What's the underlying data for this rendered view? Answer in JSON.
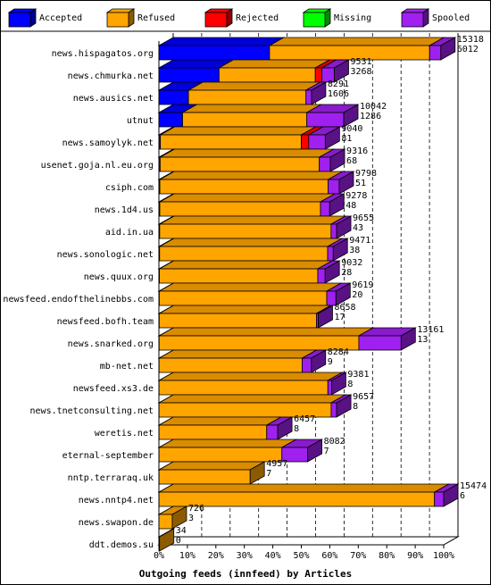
{
  "chart_data": {
    "type": "bar",
    "stacked": true,
    "orientation": "horizontal",
    "style": "3d",
    "xlabel": "Outgoing feeds (innfeed) by Articles",
    "x_ticks": [
      "0%",
      "10%",
      "20%",
      "30%",
      "40%",
      "50%",
      "60%",
      "70%",
      "80%",
      "90%",
      "100%"
    ],
    "x_max": 15474,
    "legend": [
      {
        "name": "Accepted",
        "color": "#0000ff"
      },
      {
        "name": "Refused",
        "color": "#ffa500"
      },
      {
        "name": "Rejected",
        "color": "#ff0000"
      },
      {
        "name": "Missing",
        "color": "#00ff00"
      },
      {
        "name": "Spooled",
        "color": "#a020f0"
      }
    ],
    "legend_position": "top",
    "rows": [
      {
        "label": "news.hispagatos.org",
        "total": "15318",
        "accepted_label": "6012",
        "values": [
          6012,
          8696,
          0,
          0,
          610
        ]
      },
      {
        "label": "news.chmurka.net",
        "total": "9531",
        "accepted_label": "3268",
        "values": [
          3268,
          5230,
          360,
          0,
          673
        ]
      },
      {
        "label": "news.ausics.net",
        "total": "8291",
        "accepted_label": "1606",
        "values": [
          1606,
          6385,
          0,
          0,
          300
        ]
      },
      {
        "label": "utnut",
        "total": "10042",
        "accepted_label": "1286",
        "values": [
          1286,
          6750,
          0,
          0,
          2006
        ]
      },
      {
        "label": "news.samoylyk.net",
        "total": "9040",
        "accepted_label": "81",
        "values": [
          81,
          7659,
          400,
          0,
          900
        ]
      },
      {
        "label": "usenet.goja.nl.eu.org",
        "total": "9316",
        "accepted_label": "68",
        "values": [
          68,
          8648,
          0,
          0,
          600
        ]
      },
      {
        "label": "csiph.com",
        "total": "9798",
        "accepted_label": "51",
        "values": [
          51,
          9147,
          0,
          0,
          600
        ]
      },
      {
        "label": "news.1d4.us",
        "total": "9278",
        "accepted_label": "48",
        "values": [
          48,
          8730,
          0,
          0,
          500
        ]
      },
      {
        "label": "aid.in.ua",
        "total": "9655",
        "accepted_label": "43",
        "values": [
          43,
          9312,
          0,
          0,
          300
        ]
      },
      {
        "label": "news.sonologic.net",
        "total": "9471",
        "accepted_label": "38",
        "values": [
          38,
          9133,
          0,
          0,
          300
        ]
      },
      {
        "label": "news.quux.org",
        "total": "9032",
        "accepted_label": "28",
        "values": [
          28,
          8604,
          0,
          0,
          400
        ]
      },
      {
        "label": "newsfeed.endofthelinebbs.com",
        "total": "9619",
        "accepted_label": "20",
        "values": [
          20,
          9099,
          0,
          0,
          500
        ]
      },
      {
        "label": "newsfeed.bofh.team",
        "total": "8658",
        "accepted_label": "17",
        "values": [
          17,
          8541,
          0,
          0,
          100
        ]
      },
      {
        "label": "news.snarked.org",
        "total": "13161",
        "accepted_label": "13",
        "values": [
          13,
          10848,
          0,
          0,
          2300
        ]
      },
      {
        "label": "mb-net.net",
        "total": "8284",
        "accepted_label": "9",
        "values": [
          9,
          7775,
          0,
          0,
          500
        ]
      },
      {
        "label": "newsfeed.xs3.de",
        "total": "9381",
        "accepted_label": "8",
        "values": [
          8,
          9173,
          0,
          0,
          200
        ]
      },
      {
        "label": "news.tnetconsulting.net",
        "total": "9657",
        "accepted_label": "8",
        "values": [
          8,
          9349,
          0,
          0,
          300
        ]
      },
      {
        "label": "weretis.net",
        "total": "6457",
        "accepted_label": "8",
        "values": [
          8,
          5849,
          0,
          0,
          600
        ]
      },
      {
        "label": "eternal-september",
        "total": "8082",
        "accepted_label": "7",
        "values": [
          7,
          6675,
          0,
          0,
          1400
        ]
      },
      {
        "label": "nntp.terraraq.uk",
        "total": "4957",
        "accepted_label": "7",
        "values": [
          7,
          4950,
          0,
          0,
          0
        ]
      },
      {
        "label": "news.nntp4.net",
        "total": "15474",
        "accepted_label": "6",
        "values": [
          6,
          14968,
          0,
          0,
          500
        ]
      },
      {
        "label": "news.swapon.de",
        "total": "726",
        "accepted_label": "3",
        "values": [
          3,
          723,
          0,
          0,
          0
        ]
      },
      {
        "label": "ddt.demos.su",
        "total": "34",
        "accepted_label": "0",
        "values": [
          0,
          34,
          0,
          0,
          0
        ]
      }
    ]
  }
}
